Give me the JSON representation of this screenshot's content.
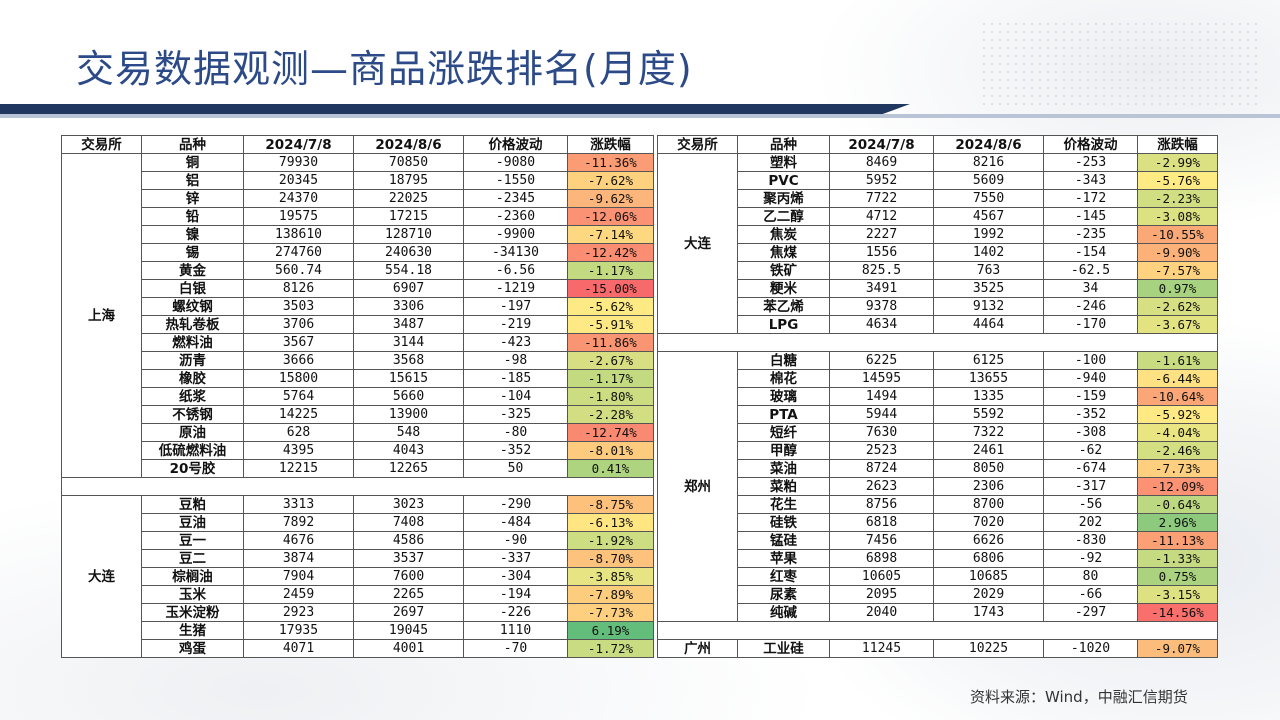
{
  "title": "交易数据观测—商品涨跌排名(月度)",
  "source": "资料来源：Wind，中融汇信期货",
  "colors": {
    "title": "#2b4a87",
    "bar_dark": "#20385f",
    "strong_red": "#f8696b",
    "mid": "#ffeb84",
    "strong_green": "#63be7b"
  },
  "headers": [
    "交易所",
    "品种",
    "2024/7/8",
    "2024/8/6",
    "价格波动",
    "涨跌幅"
  ],
  "left": [
    {
      "exchange": "上海",
      "rows": [
        [
          "铜",
          "79930",
          "70850",
          "-9080",
          "-11.36%",
          -11.36
        ],
        [
          "铝",
          "20345",
          "18795",
          "-1550",
          "-7.62%",
          -7.62
        ],
        [
          "锌",
          "24370",
          "22025",
          "-2345",
          "-9.62%",
          -9.62
        ],
        [
          "铅",
          "19575",
          "17215",
          "-2360",
          "-12.06%",
          -12.06
        ],
        [
          "镍",
          "138610",
          "128710",
          "-9900",
          "-7.14%",
          -7.14
        ],
        [
          "锡",
          "274760",
          "240630",
          "-34130",
          "-12.42%",
          -12.42
        ],
        [
          "黄金",
          "560.74",
          "554.18",
          "-6.56",
          "-1.17%",
          -1.17
        ],
        [
          "白银",
          "8126",
          "6907",
          "-1219",
          "-15.00%",
          -15.0
        ],
        [
          "螺纹钢",
          "3503",
          "3306",
          "-197",
          "-5.62%",
          -5.62
        ],
        [
          "热轧卷板",
          "3706",
          "3487",
          "-219",
          "-5.91%",
          -5.91
        ],
        [
          "燃料油",
          "3567",
          "3144",
          "-423",
          "-11.86%",
          -11.86
        ],
        [
          "沥青",
          "3666",
          "3568",
          "-98",
          "-2.67%",
          -2.67
        ],
        [
          "橡胶",
          "15800",
          "15615",
          "-185",
          "-1.17%",
          -1.17
        ],
        [
          "纸浆",
          "5764",
          "5660",
          "-104",
          "-1.80%",
          -1.8
        ],
        [
          "不锈钢",
          "14225",
          "13900",
          "-325",
          "-2.28%",
          -2.28
        ],
        [
          "原油",
          "628",
          "548",
          "-80",
          "-12.74%",
          -12.74
        ],
        [
          "低硫燃料油",
          "4395",
          "4043",
          "-352",
          "-8.01%",
          -8.01
        ],
        [
          "20号胶",
          "12215",
          "12265",
          "50",
          "0.41%",
          0.41
        ]
      ]
    },
    {
      "exchange": "",
      "rows": []
    },
    {
      "exchange": "大连",
      "rows": [
        [
          "豆粕",
          "3313",
          "3023",
          "-290",
          "-8.75%",
          -8.75
        ],
        [
          "豆油",
          "7892",
          "7408",
          "-484",
          "-6.13%",
          -6.13
        ],
        [
          "豆一",
          "4676",
          "4586",
          "-90",
          "-1.92%",
          -1.92
        ],
        [
          "豆二",
          "3874",
          "3537",
          "-337",
          "-8.70%",
          -8.7
        ],
        [
          "棕榈油",
          "7904",
          "7600",
          "-304",
          "-3.85%",
          -3.85
        ],
        [
          "玉米",
          "2459",
          "2265",
          "-194",
          "-7.89%",
          -7.89
        ],
        [
          "玉米淀粉",
          "2923",
          "2697",
          "-226",
          "-7.73%",
          -7.73
        ],
        [
          "生猪",
          "17935",
          "19045",
          "1110",
          "6.19%",
          6.19
        ],
        [
          "鸡蛋",
          "4071",
          "4001",
          "-70",
          "-1.72%",
          -1.72
        ]
      ]
    }
  ],
  "right": [
    {
      "exchange": "大连",
      "rows": [
        [
          "塑料",
          "8469",
          "8216",
          "-253",
          "-2.99%",
          -2.99
        ],
        [
          "PVC",
          "5952",
          "5609",
          "-343",
          "-5.76%",
          -5.76
        ],
        [
          "聚丙烯",
          "7722",
          "7550",
          "-172",
          "-2.23%",
          -2.23
        ],
        [
          "乙二醇",
          "4712",
          "4567",
          "-145",
          "-3.08%",
          -3.08
        ],
        [
          "焦炭",
          "2227",
          "1992",
          "-235",
          "-10.55%",
          -10.55
        ],
        [
          "焦煤",
          "1556",
          "1402",
          "-154",
          "-9.90%",
          -9.9
        ],
        [
          "铁矿",
          "825.5",
          "763",
          "-62.5",
          "-7.57%",
          -7.57
        ],
        [
          "粳米",
          "3491",
          "3525",
          "34",
          "0.97%",
          0.97
        ],
        [
          "苯乙烯",
          "9378",
          "9132",
          "-246",
          "-2.62%",
          -2.62
        ],
        [
          "LPG",
          "4634",
          "4464",
          "-170",
          "-3.67%",
          -3.67
        ]
      ]
    },
    {
      "exchange": "",
      "rows": []
    },
    {
      "exchange": "郑州",
      "rows": [
        [
          "白糖",
          "6225",
          "6125",
          "-100",
          "-1.61%",
          -1.61
        ],
        [
          "棉花",
          "14595",
          "13655",
          "-940",
          "-6.44%",
          -6.44
        ],
        [
          "玻璃",
          "1494",
          "1335",
          "-159",
          "-10.64%",
          -10.64
        ],
        [
          "PTA",
          "5944",
          "5592",
          "-352",
          "-5.92%",
          -5.92
        ],
        [
          "短纤",
          "7630",
          "7322",
          "-308",
          "-4.04%",
          -4.04
        ],
        [
          "甲醇",
          "2523",
          "2461",
          "-62",
          "-2.46%",
          -2.46
        ],
        [
          "菜油",
          "8724",
          "8050",
          "-674",
          "-7.73%",
          -7.73
        ],
        [
          "菜粕",
          "2623",
          "2306",
          "-317",
          "-12.09%",
          -12.09
        ],
        [
          "花生",
          "8756",
          "8700",
          "-56",
          "-0.64%",
          -0.64
        ],
        [
          "硅铁",
          "6818",
          "7020",
          "202",
          "2.96%",
          2.96
        ],
        [
          "锰硅",
          "7456",
          "6626",
          "-830",
          "-11.13%",
          -11.13
        ],
        [
          "苹果",
          "6898",
          "6806",
          "-92",
          "-1.33%",
          -1.33
        ],
        [
          "红枣",
          "10605",
          "10685",
          "80",
          "0.75%",
          0.75
        ],
        [
          "尿素",
          "2095",
          "2029",
          "-66",
          "-3.15%",
          -3.15
        ],
        [
          "纯碱",
          "2040",
          "1743",
          "-297",
          "-14.56%",
          -14.56
        ]
      ]
    },
    {
      "exchange": "",
      "rows": []
    },
    {
      "exchange": "广州",
      "rows": [
        [
          "工业硅",
          "11245",
          "10225",
          "-1020",
          "-9.07%",
          -9.07
        ]
      ]
    }
  ]
}
